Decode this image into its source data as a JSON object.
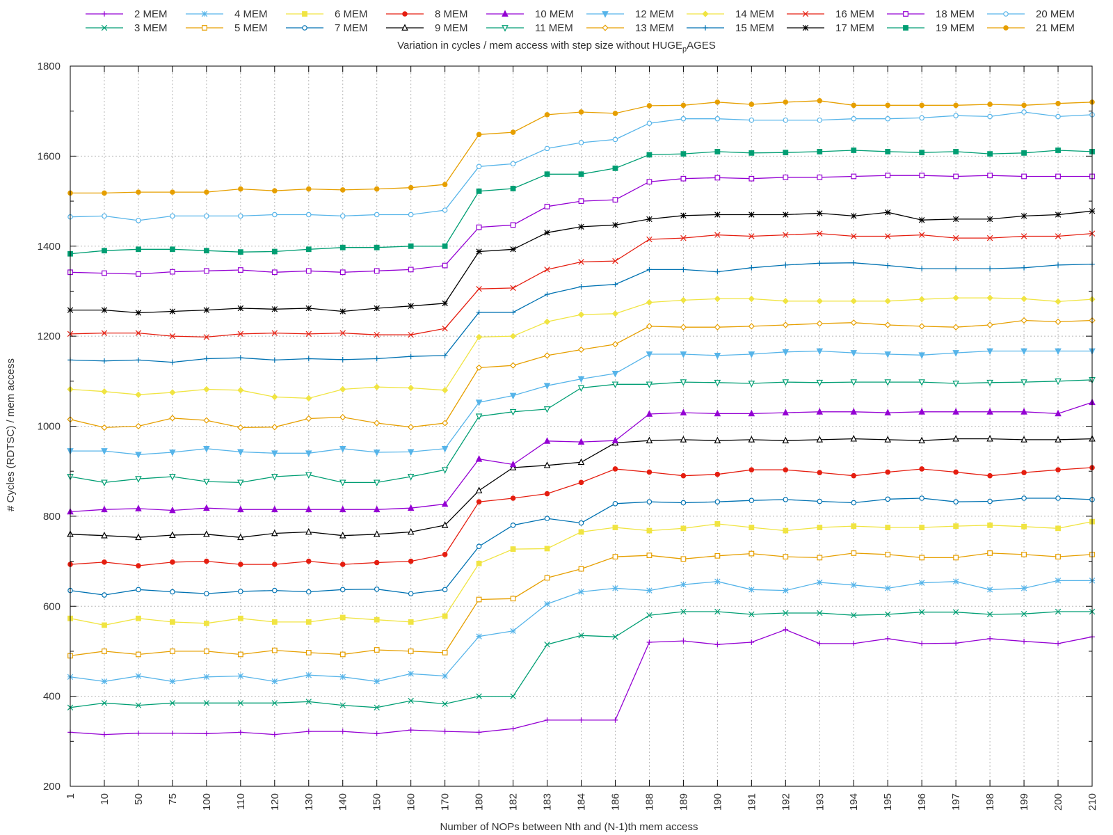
{
  "chart_data": {
    "type": "line",
    "title_main": "Variation in cycles / mem access with step size without HUGE",
    "title_sub": "p",
    "title_tail": "AGES",
    "xlabel": "Number of NOPs between Nth and (N-1)th mem access",
    "ylabel": "# Cycles (RDTSC) / mem access",
    "ylim": [
      200,
      1800
    ],
    "yticks": [
      "200",
      "400",
      "600",
      "800",
      "1000",
      "1200",
      "1400",
      "1600",
      "1800"
    ],
    "categories": [
      "1",
      "10",
      "50",
      "75",
      "100",
      "110",
      "120",
      "130",
      "140",
      "150",
      "160",
      "170",
      "180",
      "182",
      "183",
      "184",
      "186",
      "188",
      "189",
      "190",
      "191",
      "192",
      "193",
      "194",
      "195",
      "196",
      "197",
      "198",
      "199",
      "200",
      "210"
    ],
    "grid": true,
    "legend_position": "top",
    "series": [
      {
        "name": "2 MEM",
        "color": "#9400d3",
        "marker": "plus",
        "values": [
          320,
          315,
          318,
          318,
          317,
          320,
          315,
          322,
          322,
          317,
          325,
          322,
          320,
          328,
          347,
          347,
          347,
          520,
          523,
          515,
          520,
          548,
          517,
          517,
          528,
          517,
          518,
          528,
          522,
          517,
          532
        ]
      },
      {
        "name": "3 MEM",
        "color": "#009e73",
        "marker": "x",
        "values": [
          375,
          385,
          380,
          385,
          385,
          385,
          385,
          388,
          380,
          375,
          390,
          383,
          400,
          400,
          515,
          535,
          532,
          580,
          588,
          588,
          582,
          585,
          585,
          580,
          582,
          587,
          587,
          582,
          583,
          588,
          588
        ]
      },
      {
        "name": "4 MEM",
        "color": "#56b4e9",
        "marker": "star",
        "values": [
          443,
          433,
          445,
          433,
          443,
          445,
          433,
          447,
          443,
          433,
          450,
          445,
          533,
          545,
          605,
          632,
          640,
          635,
          648,
          655,
          637,
          635,
          653,
          647,
          640,
          652,
          655,
          637,
          640,
          657,
          657
        ]
      },
      {
        "name": "5 MEM",
        "color": "#e69f00",
        "marker": "open-square",
        "values": [
          490,
          500,
          493,
          500,
          500,
          493,
          502,
          497,
          493,
          503,
          500,
          497,
          615,
          617,
          663,
          683,
          710,
          713,
          705,
          712,
          717,
          710,
          708,
          718,
          715,
          708,
          708,
          718,
          715,
          710,
          715
        ]
      },
      {
        "name": "6 MEM",
        "color": "#f0e442",
        "marker": "filled-square",
        "values": [
          573,
          558,
          573,
          565,
          562,
          573,
          565,
          565,
          575,
          570,
          565,
          578,
          695,
          727,
          728,
          765,
          775,
          768,
          773,
          783,
          775,
          768,
          775,
          778,
          775,
          775,
          778,
          780,
          777,
          773,
          788
        ]
      },
      {
        "name": "7 MEM",
        "color": "#0072b2",
        "marker": "open-circle",
        "values": [
          635,
          625,
          637,
          632,
          628,
          633,
          635,
          632,
          637,
          638,
          628,
          637,
          733,
          780,
          795,
          785,
          828,
          832,
          830,
          832,
          835,
          837,
          833,
          830,
          838,
          840,
          832,
          833,
          840,
          840,
          837
        ]
      },
      {
        "name": "8 MEM",
        "color": "#e51e10",
        "marker": "filled-circle",
        "values": [
          693,
          698,
          690,
          698,
          700,
          693,
          693,
          700,
          693,
          697,
          700,
          715,
          832,
          840,
          850,
          875,
          905,
          898,
          890,
          893,
          903,
          903,
          897,
          890,
          898,
          905,
          898,
          890,
          897,
          903,
          908
        ]
      },
      {
        "name": "9 MEM",
        "color": "#000000",
        "marker": "open-triangle",
        "values": [
          760,
          757,
          753,
          758,
          760,
          753,
          762,
          765,
          757,
          760,
          765,
          780,
          857,
          908,
          913,
          920,
          963,
          968,
          970,
          968,
          970,
          968,
          970,
          972,
          970,
          968,
          972,
          972,
          970,
          970,
          972
        ]
      },
      {
        "name": "10 MEM",
        "color": "#9400d3",
        "marker": "filled-triangle",
        "values": [
          810,
          815,
          817,
          813,
          818,
          815,
          815,
          815,
          815,
          815,
          818,
          827,
          927,
          915,
          967,
          965,
          968,
          1027,
          1030,
          1028,
          1028,
          1030,
          1032,
          1032,
          1030,
          1032,
          1032,
          1032,
          1032,
          1028,
          1053
        ]
      },
      {
        "name": "11 MEM",
        "color": "#009e73",
        "marker": "open-down-triangle",
        "values": [
          888,
          875,
          883,
          888,
          877,
          875,
          888,
          892,
          875,
          875,
          888,
          903,
          1022,
          1032,
          1038,
          1085,
          1093,
          1093,
          1098,
          1097,
          1095,
          1098,
          1097,
          1098,
          1098,
          1098,
          1095,
          1097,
          1098,
          1100,
          1103
        ]
      },
      {
        "name": "12 MEM",
        "color": "#56b4e9",
        "marker": "filled-down-triangle",
        "values": [
          945,
          945,
          937,
          942,
          950,
          943,
          940,
          940,
          950,
          942,
          943,
          950,
          1053,
          1068,
          1090,
          1105,
          1117,
          1160,
          1160,
          1157,
          1160,
          1165,
          1167,
          1163,
          1160,
          1158,
          1163,
          1167,
          1167,
          1167,
          1167
        ]
      },
      {
        "name": "13 MEM",
        "color": "#e69f00",
        "marker": "open-diamond",
        "values": [
          1015,
          997,
          1000,
          1018,
          1013,
          997,
          998,
          1017,
          1020,
          1007,
          998,
          1007,
          1130,
          1135,
          1157,
          1170,
          1182,
          1222,
          1220,
          1220,
          1222,
          1225,
          1228,
          1230,
          1225,
          1222,
          1220,
          1225,
          1235,
          1232,
          1235
        ]
      },
      {
        "name": "14 MEM",
        "color": "#f0e442",
        "marker": "filled-diamond",
        "values": [
          1082,
          1077,
          1070,
          1075,
          1082,
          1080,
          1065,
          1062,
          1082,
          1087,
          1085,
          1080,
          1198,
          1200,
          1232,
          1248,
          1250,
          1275,
          1280,
          1283,
          1283,
          1278,
          1278,
          1278,
          1278,
          1282,
          1285,
          1285,
          1283,
          1277,
          1282
        ]
      },
      {
        "name": "15 MEM",
        "color": "#0072b2",
        "marker": "plus",
        "values": [
          1147,
          1145,
          1147,
          1142,
          1150,
          1152,
          1147,
          1150,
          1148,
          1150,
          1155,
          1157,
          1253,
          1253,
          1293,
          1310,
          1315,
          1348,
          1348,
          1343,
          1352,
          1358,
          1362,
          1363,
          1357,
          1350,
          1350,
          1350,
          1352,
          1358,
          1360
        ]
      },
      {
        "name": "16 MEM",
        "color": "#e51e10",
        "marker": "x",
        "values": [
          1205,
          1207,
          1207,
          1200,
          1198,
          1205,
          1207,
          1205,
          1207,
          1203,
          1203,
          1217,
          1305,
          1307,
          1348,
          1365,
          1367,
          1415,
          1418,
          1425,
          1422,
          1425,
          1428,
          1422,
          1422,
          1425,
          1418,
          1418,
          1422,
          1422,
          1428
        ]
      },
      {
        "name": "17 MEM",
        "color": "#000000",
        "marker": "star",
        "values": [
          1258,
          1258,
          1252,
          1255,
          1258,
          1262,
          1260,
          1262,
          1255,
          1262,
          1267,
          1273,
          1388,
          1393,
          1430,
          1443,
          1447,
          1460,
          1468,
          1470,
          1470,
          1470,
          1473,
          1467,
          1475,
          1458,
          1460,
          1460,
          1467,
          1470,
          1478
        ]
      },
      {
        "name": "18 MEM",
        "color": "#9400d3",
        "marker": "open-square",
        "values": [
          1342,
          1340,
          1338,
          1343,
          1345,
          1347,
          1342,
          1345,
          1342,
          1345,
          1348,
          1357,
          1442,
          1447,
          1488,
          1500,
          1503,
          1543,
          1550,
          1552,
          1550,
          1553,
          1553,
          1555,
          1557,
          1557,
          1555,
          1557,
          1555,
          1555,
          1555
        ]
      },
      {
        "name": "19 MEM",
        "color": "#009e73",
        "marker": "filled-square",
        "values": [
          1383,
          1390,
          1393,
          1393,
          1390,
          1387,
          1388,
          1393,
          1397,
          1397,
          1400,
          1400,
          1522,
          1528,
          1560,
          1560,
          1573,
          1603,
          1605,
          1610,
          1607,
          1608,
          1610,
          1613,
          1610,
          1608,
          1610,
          1605,
          1607,
          1613,
          1610
        ]
      },
      {
        "name": "20 MEM",
        "color": "#56b4e9",
        "marker": "open-circle",
        "values": [
          1465,
          1467,
          1457,
          1467,
          1467,
          1467,
          1470,
          1470,
          1467,
          1470,
          1470,
          1480,
          1577,
          1583,
          1617,
          1630,
          1637,
          1673,
          1683,
          1683,
          1680,
          1680,
          1680,
          1683,
          1683,
          1685,
          1690,
          1688,
          1698,
          1688,
          1692
        ]
      },
      {
        "name": "21 MEM",
        "color": "#e69f00",
        "marker": "filled-circle",
        "values": [
          1518,
          1518,
          1520,
          1520,
          1520,
          1527,
          1523,
          1527,
          1525,
          1527,
          1530,
          1537,
          1648,
          1653,
          1692,
          1698,
          1695,
          1712,
          1713,
          1720,
          1715,
          1720,
          1723,
          1713,
          1713,
          1713,
          1713,
          1715,
          1713,
          1717,
          1720
        ]
      }
    ]
  }
}
